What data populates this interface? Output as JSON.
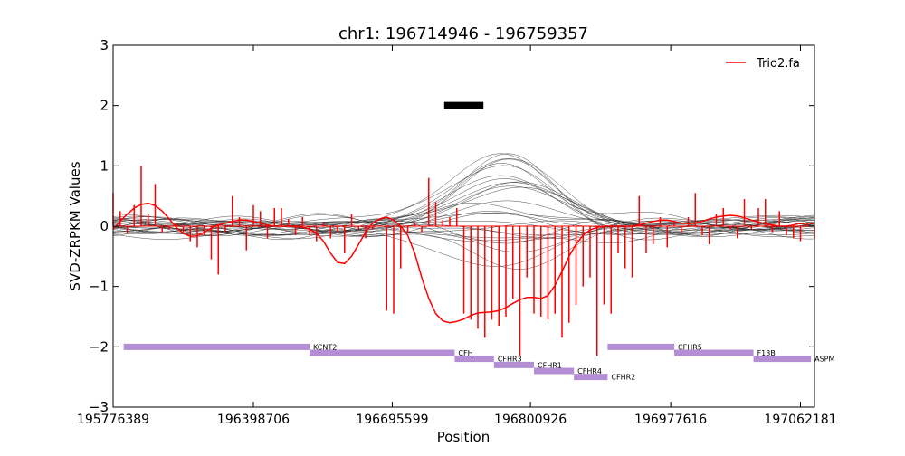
{
  "chart_data": {
    "type": "line",
    "title": "chr1: 196714946 - 196759357",
    "xlabel": "Position",
    "ylabel": "SVD-ZRPKM Values",
    "ylim": [
      -3,
      3
    ],
    "yticks": [
      3,
      2,
      1,
      0,
      -1,
      -2,
      -3
    ],
    "ytick_labels": [
      "3",
      "2",
      "1",
      "0",
      "−1",
      "−2",
      "−3"
    ],
    "xtick_labels": [
      "195776389",
      "196398706",
      "196695599",
      "196800926",
      "196977616",
      "197062181"
    ],
    "grid": false,
    "legend": {
      "position": "top-right",
      "entries": [
        {
          "label": "Trio2.fa",
          "color": "#ff0000"
        }
      ]
    },
    "highlight_bar": {
      "y": 2.0,
      "x_start": 0.472,
      "x_end": 0.528,
      "color": "#000000"
    },
    "highlighted_sample": {
      "name": "Trio2.fa",
      "color": "#ff0000",
      "x": [
        0.0,
        0.01,
        0.02,
        0.03,
        0.04,
        0.05,
        0.06,
        0.07,
        0.08,
        0.09,
        0.1,
        0.11,
        0.12,
        0.13,
        0.14,
        0.15,
        0.16,
        0.17,
        0.18,
        0.19,
        0.2,
        0.21,
        0.22,
        0.23,
        0.24,
        0.25,
        0.26,
        0.27,
        0.28,
        0.29,
        0.3,
        0.31,
        0.32,
        0.33,
        0.34,
        0.35,
        0.36,
        0.37,
        0.38,
        0.39,
        0.4,
        0.41,
        0.42,
        0.43,
        0.44,
        0.45,
        0.46,
        0.47,
        0.48,
        0.49,
        0.5,
        0.51,
        0.52,
        0.53,
        0.54,
        0.55,
        0.56,
        0.57,
        0.58,
        0.59,
        0.6,
        0.61,
        0.62,
        0.63,
        0.64,
        0.65,
        0.66,
        0.67,
        0.68,
        0.69,
        0.7,
        0.71,
        0.72,
        0.73,
        0.74,
        0.75,
        0.76,
        0.77,
        0.78,
        0.79,
        0.8,
        0.81,
        0.82,
        0.83,
        0.84,
        0.85,
        0.86,
        0.87,
        0.88,
        0.89,
        0.9,
        0.91,
        0.92,
        0.93,
        0.94,
        0.95,
        0.96,
        0.97,
        0.98,
        0.99,
        1.0
      ],
      "smooth": [
        -0.05,
        0.08,
        0.2,
        0.3,
        0.36,
        0.38,
        0.34,
        0.25,
        0.12,
        -0.02,
        -0.12,
        -0.17,
        -0.16,
        -0.1,
        -0.03,
        0.02,
        0.05,
        0.08,
        0.1,
        0.1,
        0.08,
        0.05,
        0.02,
        0.0,
        0.0,
        0.0,
        0.0,
        -0.02,
        -0.05,
        -0.12,
        -0.25,
        -0.45,
        -0.6,
        -0.62,
        -0.5,
        -0.3,
        -0.1,
        0.05,
        0.12,
        0.15,
        0.1,
        0.0,
        -0.15,
        -0.45,
        -0.85,
        -1.2,
        -1.45,
        -1.57,
        -1.6,
        -1.58,
        -1.54,
        -1.48,
        -1.44,
        -1.43,
        -1.42,
        -1.4,
        -1.35,
        -1.28,
        -1.22,
        -1.18,
        -1.18,
        -1.2,
        -1.15,
        -0.98,
        -0.75,
        -0.5,
        -0.3,
        -0.15,
        -0.06,
        -0.02,
        0.0,
        0.0,
        0.0,
        0.0,
        0.0,
        0.02,
        0.05,
        0.08,
        0.1,
        0.1,
        0.08,
        0.05,
        0.04,
        0.05,
        0.08,
        0.12,
        0.15,
        0.17,
        0.18,
        0.17,
        0.14,
        0.1,
        0.07,
        0.04,
        0.02,
        0.0,
        0.0,
        0.02,
        0.05,
        0.05,
        0.05
      ],
      "stems": [
        0.55,
        0.25,
        -0.12,
        0.35,
        1.0,
        0.2,
        0.7,
        -0.1,
        -0.05,
        0.05,
        -0.1,
        -0.25,
        -0.35,
        -0.15,
        -0.55,
        -0.8,
        -0.1,
        0.5,
        0.15,
        -0.4,
        0.35,
        0.25,
        -0.2,
        0.3,
        0.3,
        0.12,
        -0.15,
        0.15,
        -0.15,
        -0.25,
        0.05,
        -0.2,
        -0.1,
        -0.45,
        0.2,
        -0.05,
        -0.2,
        -0.05,
        0.0,
        -1.4,
        -1.45,
        -0.7,
        -0.1,
        0.05,
        -0.1,
        0.8,
        0.4,
        0.1,
        0.15,
        0.3,
        -1.45,
        -1.55,
        -1.7,
        -1.85,
        -1.55,
        -1.65,
        -1.5,
        -1.2,
        -2.15,
        -0.85,
        -1.45,
        -1.5,
        -1.55,
        -1.45,
        -1.85,
        -1.6,
        -1.3,
        -1.0,
        -0.85,
        -2.15,
        -1.3,
        -1.45,
        -0.45,
        -0.7,
        -0.85,
        0.5,
        -0.45,
        -0.3,
        0.15,
        -0.35,
        0.05,
        -0.1,
        0.15,
        0.55,
        -0.15,
        -0.3,
        0.2,
        0.3,
        -0.05,
        -0.2,
        0.45,
        -0.05,
        0.3,
        0.45,
        -0.1,
        0.25,
        -0.15,
        -0.2,
        -0.25,
        0.05,
        -0.2
      ]
    },
    "genes": [
      {
        "name": "KCNT2",
        "x_start": 0.015,
        "x_end": 0.28,
        "y": -2.0
      },
      {
        "name": "CFH",
        "x_start": 0.28,
        "x_end": 0.487,
        "y": -2.1
      },
      {
        "name": "CFHR3",
        "x_start": 0.487,
        "x_end": 0.543,
        "y": -2.2
      },
      {
        "name": "CFHR1",
        "x_start": 0.543,
        "x_end": 0.6,
        "y": -2.3
      },
      {
        "name": "CFHR4",
        "x_start": 0.6,
        "x_end": 0.657,
        "y": -2.4
      },
      {
        "name": "CFHR2",
        "x_start": 0.657,
        "x_end": 0.705,
        "y": -2.5
      },
      {
        "name": "CFHR5",
        "x_start": 0.705,
        "x_end": 0.8,
        "y": -2.0
      },
      {
        "name": "F13B",
        "x_start": 0.8,
        "x_end": 0.913,
        "y": -2.1
      },
      {
        "name": "ASPM",
        "x_start": 0.913,
        "x_end": 0.995,
        "y": -2.2
      }
    ]
  },
  "colors": {
    "sample_line": "#ff0000",
    "background_lines": "#222222",
    "gene_bar": "#b48fd6",
    "highlight_bar": "#000000"
  }
}
